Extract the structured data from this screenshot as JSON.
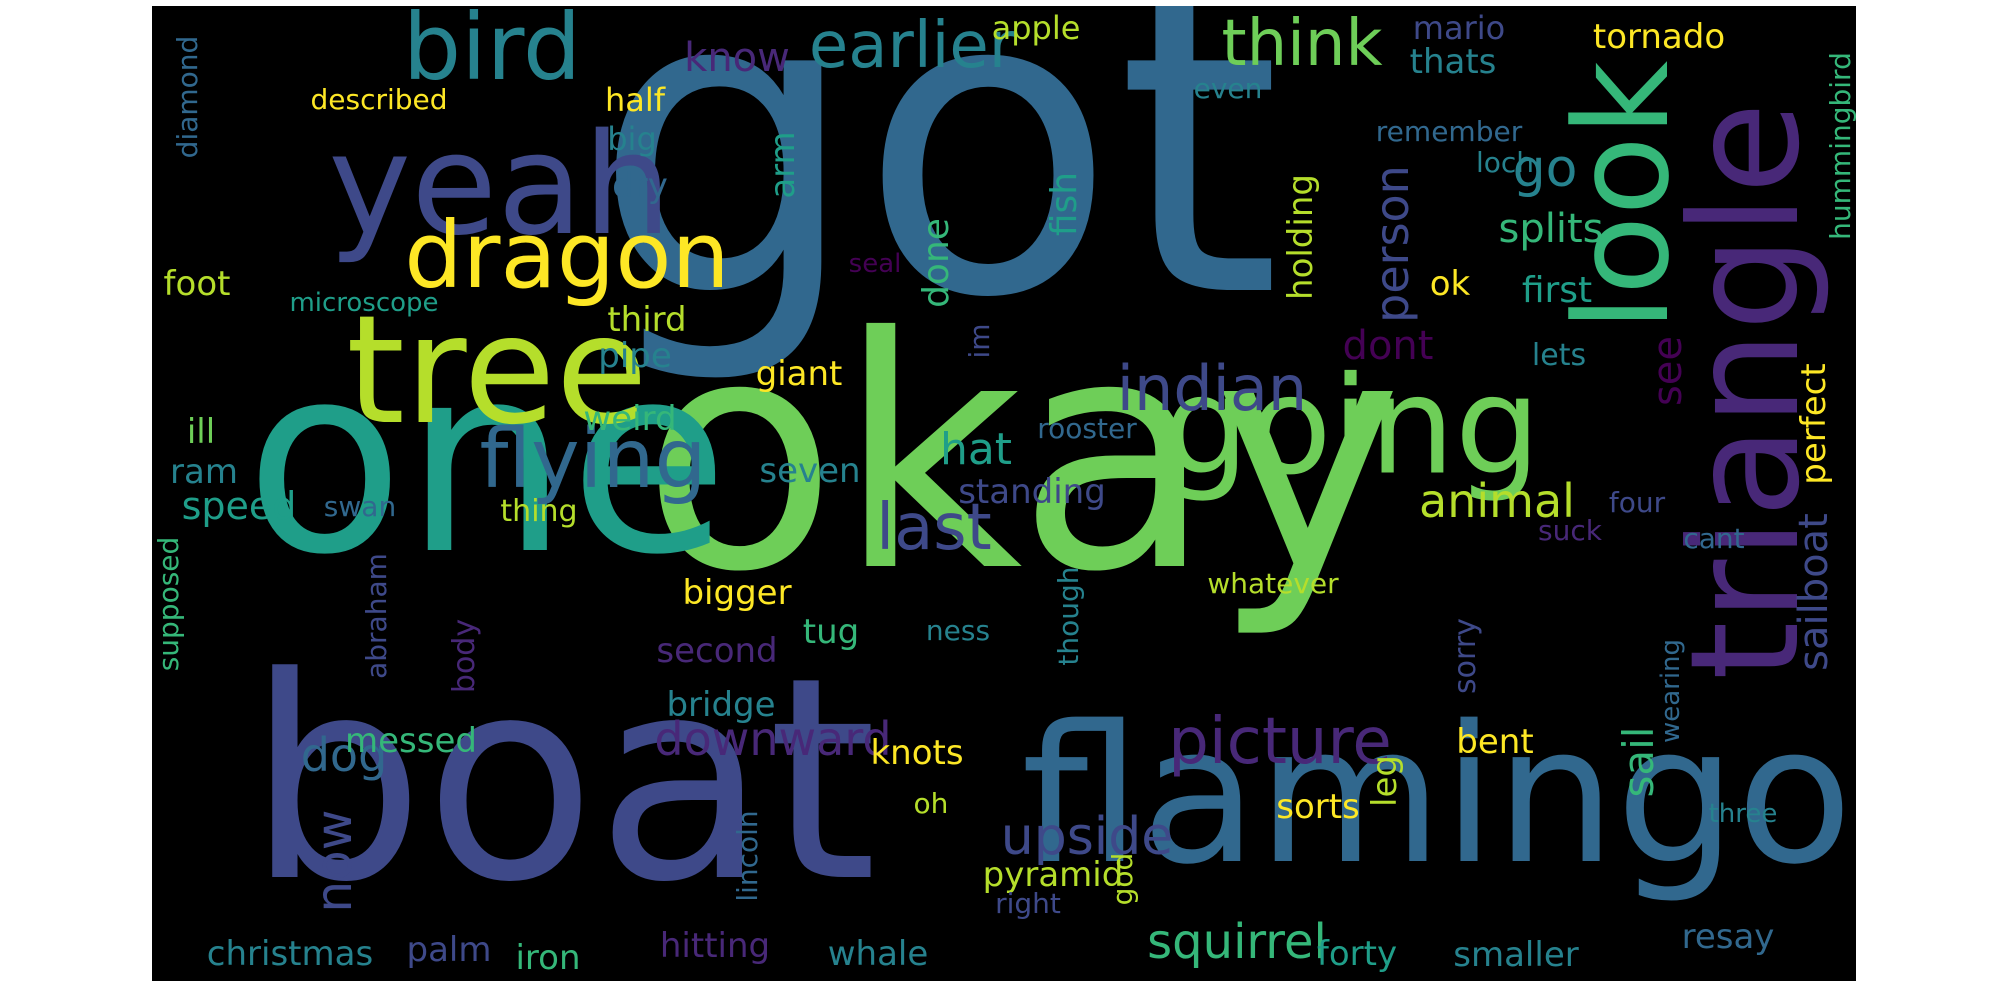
{
  "palette": {
    "background": "#000000",
    "page_background": "#ffffff",
    "dark_purple": "#440154",
    "purple": "#482878",
    "indigo": "#3e4989",
    "blue": "#31688e",
    "teal_blue": "#26828e",
    "teal": "#1f9e89",
    "green": "#35b779",
    "light_green": "#6ece58",
    "lime": "#b5de2b",
    "yellow": "#fde725"
  },
  "words": [
    {
      "text": "got",
      "color": "#31688e"
    },
    {
      "text": "okay",
      "color": "#6ece58"
    },
    {
      "text": "one",
      "color": "#1f9e89"
    },
    {
      "text": "boat",
      "color": "#3e4989"
    },
    {
      "text": "flamingo",
      "color": "#31688e"
    },
    {
      "text": "triangle",
      "color": "#482878"
    },
    {
      "text": "tree",
      "color": "#b5de2b"
    },
    {
      "text": "yeah",
      "color": "#3e4989"
    },
    {
      "text": "going",
      "color": "#6ece58"
    },
    {
      "text": "look",
      "color": "#35b779"
    },
    {
      "text": "dragon",
      "color": "#fde725"
    },
    {
      "text": "bird",
      "color": "#26828e"
    },
    {
      "text": "flying",
      "color": "#31688e"
    },
    {
      "text": "earlier",
      "color": "#26828e"
    },
    {
      "text": "think",
      "color": "#6ece58"
    },
    {
      "text": "indian",
      "color": "#3e4989"
    },
    {
      "text": "picture",
      "color": "#482878"
    },
    {
      "text": "last",
      "color": "#3e4989"
    },
    {
      "text": "animal",
      "color": "#b5de2b"
    },
    {
      "text": "person",
      "color": "#3e4989"
    },
    {
      "text": "go",
      "color": "#26828e"
    },
    {
      "text": "splits",
      "color": "#35b779"
    },
    {
      "text": "downward",
      "color": "#482878"
    },
    {
      "text": "upside",
      "color": "#3e4989"
    },
    {
      "text": "squirrel",
      "color": "#35b779"
    },
    {
      "text": "now",
      "color": "#3e4989"
    },
    {
      "text": "dog",
      "color": "#31688e"
    },
    {
      "text": "sailboat",
      "color": "#3e4989"
    },
    {
      "text": "sail",
      "color": "#35b779"
    },
    {
      "text": "know",
      "color": "#482878"
    },
    {
      "text": "apple",
      "color": "#b5de2b"
    },
    {
      "text": "mario",
      "color": "#3e4989"
    },
    {
      "text": "thats",
      "color": "#26828e"
    },
    {
      "text": "tornado",
      "color": "#fde725"
    },
    {
      "text": "hummingbird",
      "color": "#35b779"
    },
    {
      "text": "diamond",
      "color": "#31688e"
    },
    {
      "text": "described",
      "color": "#fde725"
    },
    {
      "text": "half",
      "color": "#fde725"
    },
    {
      "text": "big",
      "color": "#26828e"
    },
    {
      "text": "dry",
      "color": "#31688e"
    },
    {
      "text": "even",
      "color": "#26828e"
    },
    {
      "text": "remember",
      "color": "#31688e"
    },
    {
      "text": "loch",
      "color": "#26828e"
    },
    {
      "text": "arm",
      "color": "#1f9e89"
    },
    {
      "text": "fish",
      "color": "#1f9e89"
    },
    {
      "text": "done",
      "color": "#35b779"
    },
    {
      "text": "holding",
      "color": "#b5de2b"
    },
    {
      "text": "ok",
      "color": "#fde725"
    },
    {
      "text": "first",
      "color": "#1f9e89"
    },
    {
      "text": "foot",
      "color": "#b5de2b"
    },
    {
      "text": "seal",
      "color": "#440154"
    },
    {
      "text": "microscope",
      "color": "#1f9e89"
    },
    {
      "text": "third",
      "color": "#b5de2b"
    },
    {
      "text": "pipe",
      "color": "#26828e"
    },
    {
      "text": "dont",
      "color": "#440154"
    },
    {
      "text": "see",
      "color": "#440154"
    },
    {
      "text": "lets",
      "color": "#26828e"
    },
    {
      "text": "im",
      "color": "#3e4989"
    },
    {
      "text": "giant",
      "color": "#fde725"
    },
    {
      "text": "weird",
      "color": "#35b779"
    },
    {
      "text": "ill",
      "color": "#6ece58"
    },
    {
      "text": "rooster",
      "color": "#31688e"
    },
    {
      "text": "hat",
      "color": "#1f9e89"
    },
    {
      "text": "perfect",
      "color": "#fde725"
    },
    {
      "text": "ram",
      "color": "#26828e"
    },
    {
      "text": "seven",
      "color": "#26828e"
    },
    {
      "text": "standing",
      "color": "#3e4989"
    },
    {
      "text": "speed",
      "color": "#1f9e89"
    },
    {
      "text": "swan",
      "color": "#31688e"
    },
    {
      "text": "thing",
      "color": "#b5de2b"
    },
    {
      "text": "four",
      "color": "#3e4989"
    },
    {
      "text": "suck",
      "color": "#482878"
    },
    {
      "text": "cant",
      "color": "#31688e"
    },
    {
      "text": "supposed",
      "color": "#35b779"
    },
    {
      "text": "bigger",
      "color": "#fde725"
    },
    {
      "text": "whatever",
      "color": "#b5de2b"
    },
    {
      "text": "abraham",
      "color": "#3e4989"
    },
    {
      "text": "body",
      "color": "#482878"
    },
    {
      "text": "second",
      "color": "#482878"
    },
    {
      "text": "tug",
      "color": "#35b779"
    },
    {
      "text": "ness",
      "color": "#26828e"
    },
    {
      "text": "though",
      "color": "#26828e"
    },
    {
      "text": "sorry",
      "color": "#3e4989"
    },
    {
      "text": "bridge",
      "color": "#26828e"
    },
    {
      "text": "wearing",
      "color": "#31688e"
    },
    {
      "text": "leg",
      "color": "#b5de2b"
    },
    {
      "text": "bent",
      "color": "#fde725"
    },
    {
      "text": "messed",
      "color": "#35b779"
    },
    {
      "text": "knots",
      "color": "#fde725"
    },
    {
      "text": "oh",
      "color": "#b5de2b"
    },
    {
      "text": "sorts",
      "color": "#fde725"
    },
    {
      "text": "three",
      "color": "#26828e"
    },
    {
      "text": "lincoln",
      "color": "#31688e"
    },
    {
      "text": "pyramid",
      "color": "#b5de2b"
    },
    {
      "text": "right",
      "color": "#3e4989"
    },
    {
      "text": "god",
      "color": "#b5de2b"
    },
    {
      "text": "resay",
      "color": "#31688e"
    },
    {
      "text": "christmas",
      "color": "#26828e"
    },
    {
      "text": "palm",
      "color": "#3e4989"
    },
    {
      "text": "iron",
      "color": "#35b779"
    },
    {
      "text": "hitting",
      "color": "#482878"
    },
    {
      "text": "whale",
      "color": "#26828e"
    },
    {
      "text": "forty",
      "color": "#1f9e89"
    },
    {
      "text": "smaller",
      "color": "#26828e"
    }
  ]
}
